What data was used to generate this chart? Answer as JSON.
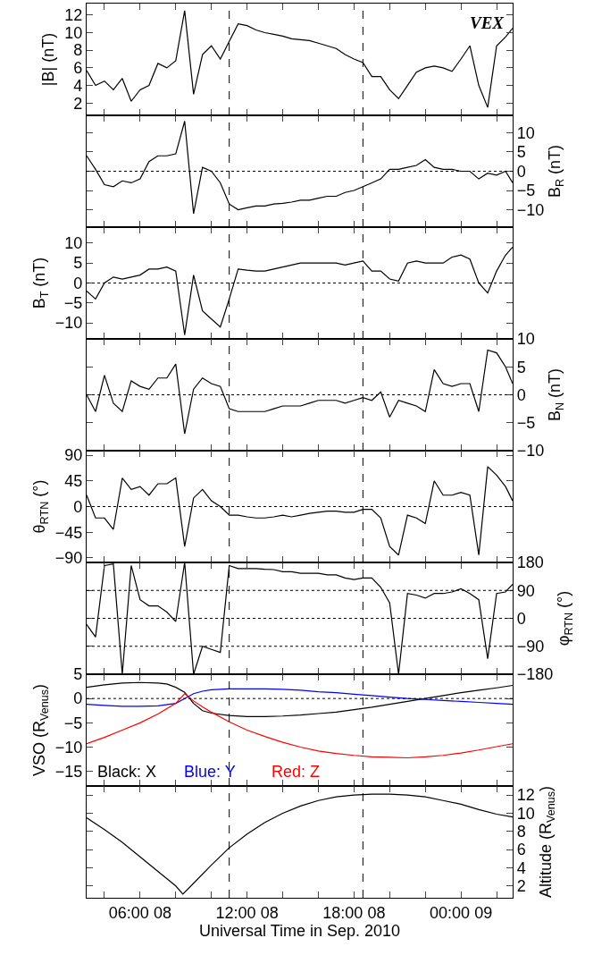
{
  "chart_data": [
    {
      "type": "line",
      "ylabel": "|B| (nT)",
      "annotations": [
        "VEX"
      ],
      "tick_labels": "y",
      "xlim": [
        "2010-09-08T03:00",
        "2010-09-09T02:54"
      ],
      "xticks": [
        {
          "value": "2010-09-08T04:00",
          "label": null
        },
        {
          "value": "2010-09-08T06:00",
          "label": null
        },
        {
          "value": "2010-09-08T08:00",
          "label": null
        },
        {
          "value": "2010-09-08T10:00",
          "label": null
        },
        {
          "value": "2010-09-08T12:00",
          "label": null
        },
        {
          "value": "2010-09-08T14:00",
          "label": null
        },
        {
          "value": "2010-09-08T16:00",
          "label": null
        },
        {
          "value": "2010-09-08T18:00",
          "label": null
        },
        {
          "value": "2010-09-08T20:00",
          "label": null
        },
        {
          "value": "2010-09-08T22:00",
          "label": null
        },
        {
          "value": "2010-09-09T00:00",
          "label": null
        },
        {
          "value": "2010-09-09T02:00",
          "label": null
        }
      ],
      "ylim": [
        0.6,
        13.3
      ],
      "yticks": [
        2,
        4,
        6,
        8,
        10,
        12
      ],
      "ref_lines": [
        {
          "axis": "x",
          "value": "2010-09-08T11:00",
          "line_style": "dashed"
        },
        {
          "axis": "x",
          "value": "2010-09-08T18:30",
          "line_style": "dashed"
        }
      ],
      "x": [
        "2010-09-08T03:00",
        "2010-09-08T03:30",
        "2010-09-08T04:00",
        "2010-09-08T04:30",
        "2010-09-08T05:00",
        "2010-09-08T05:30",
        "2010-09-08T06:00",
        "2010-09-08T06:30",
        "2010-09-08T07:00",
        "2010-09-08T07:30",
        "2010-09-08T08:00",
        "2010-09-08T08:30",
        "2010-09-08T09:00",
        "2010-09-08T09:30",
        "2010-09-08T10:00",
        "2010-09-08T10:30",
        "2010-09-08T11:00",
        "2010-09-08T11:30",
        "2010-09-08T12:00",
        "2010-09-08T12:30",
        "2010-09-08T13:00",
        "2010-09-08T13:30",
        "2010-09-08T14:00",
        "2010-09-08T14:30",
        "2010-09-08T15:00",
        "2010-09-08T15:30",
        "2010-09-08T16:00",
        "2010-09-08T16:30",
        "2010-09-08T17:00",
        "2010-09-08T17:30",
        "2010-09-08T18:00",
        "2010-09-08T18:30",
        "2010-09-08T19:00",
        "2010-09-08T19:30",
        "2010-09-08T20:00",
        "2010-09-08T20:30",
        "2010-09-08T21:00",
        "2010-09-08T21:30",
        "2010-09-08T22:00",
        "2010-09-08T22:30",
        "2010-09-08T23:00",
        "2010-09-08T23:30",
        "2010-09-09T00:00",
        "2010-09-09T00:30",
        "2010-09-09T01:00",
        "2010-09-09T01:30",
        "2010-09-09T02:00",
        "2010-09-09T02:30",
        "2010-09-09T02:54"
      ],
      "series": [
        {
          "color": "#000000",
          "values": [
            5.7,
            4.0,
            4.5,
            3.5,
            4.8,
            2.2,
            3.5,
            4.0,
            6.5,
            6.0,
            6.8,
            12.5,
            3.0,
            7.5,
            8.5,
            7.0,
            9.0,
            11.0,
            10.8,
            10.3,
            10.0,
            9.8,
            9.6,
            9.3,
            9.2,
            9.1,
            8.8,
            8.5,
            8.2,
            7.5,
            7.0,
            6.6,
            5.0,
            5.0,
            3.5,
            2.5,
            4.0,
            5.5,
            6.0,
            6.2,
            6.0,
            5.6,
            7.0,
            8.5,
            4.0,
            1.5,
            8.5,
            9.5,
            10.5
          ]
        }
      ]
    },
    {
      "type": "line",
      "ylabel": "B$_{R}$ (nT)",
      "tick_labels": "y",
      "xlim": [
        "2010-09-08T03:00",
        "2010-09-09T02:54"
      ],
      "xticks": [
        {
          "value": "2010-09-08T04:00",
          "label": null
        },
        {
          "value": "2010-09-08T06:00",
          "label": null
        },
        {
          "value": "2010-09-08T08:00",
          "label": null
        },
        {
          "value": "2010-09-08T10:00",
          "label": null
        },
        {
          "value": "2010-09-08T12:00",
          "label": null
        },
        {
          "value": "2010-09-08T14:00",
          "label": null
        },
        {
          "value": "2010-09-08T16:00",
          "label": null
        },
        {
          "value": "2010-09-08T18:00",
          "label": null
        },
        {
          "value": "2010-09-08T20:00",
          "label": null
        },
        {
          "value": "2010-09-08T22:00",
          "label": null
        },
        {
          "value": "2010-09-09T00:00",
          "label": null
        },
        {
          "value": "2010-09-09T02:00",
          "label": null
        }
      ],
      "ylim": [
        -14.5,
        14.5
      ],
      "yticks": [
        -10,
        -5,
        0,
        5,
        10
      ],
      "ref_lines": [
        {
          "axis": "x",
          "value": "2010-09-08T11:00",
          "line_style": "dashed"
        },
        {
          "axis": "x",
          "value": "2010-09-08T18:30",
          "line_style": "dashed"
        },
        {
          "axis": "y",
          "value": 0,
          "line_style": "dotted"
        }
      ],
      "x": [
        "2010-09-08T03:00",
        "2010-09-08T03:30",
        "2010-09-08T04:00",
        "2010-09-08T04:30",
        "2010-09-08T05:00",
        "2010-09-08T05:30",
        "2010-09-08T06:00",
        "2010-09-08T06:30",
        "2010-09-08T07:00",
        "2010-09-08T07:30",
        "2010-09-08T08:00",
        "2010-09-08T08:30",
        "2010-09-08T09:00",
        "2010-09-08T09:30",
        "2010-09-08T10:00",
        "2010-09-08T10:30",
        "2010-09-08T11:00",
        "2010-09-08T11:30",
        "2010-09-08T12:00",
        "2010-09-08T12:30",
        "2010-09-08T13:00",
        "2010-09-08T13:30",
        "2010-09-08T14:00",
        "2010-09-08T14:30",
        "2010-09-08T15:00",
        "2010-09-08T15:30",
        "2010-09-08T16:00",
        "2010-09-08T16:30",
        "2010-09-08T17:00",
        "2010-09-08T17:30",
        "2010-09-08T18:00",
        "2010-09-08T18:30",
        "2010-09-08T19:00",
        "2010-09-08T19:30",
        "2010-09-08T20:00",
        "2010-09-08T20:30",
        "2010-09-08T21:00",
        "2010-09-08T21:30",
        "2010-09-08T22:00",
        "2010-09-08T22:30",
        "2010-09-08T23:00",
        "2010-09-08T23:30",
        "2010-09-09T00:00",
        "2010-09-09T00:30",
        "2010-09-09T01:00",
        "2010-09-09T01:30",
        "2010-09-09T02:00",
        "2010-09-09T02:30",
        "2010-09-09T02:54"
      ],
      "series": [
        {
          "color": "#000000",
          "values": [
            4.0,
            0.5,
            -3.5,
            -4.0,
            -2.5,
            -3.0,
            -2.0,
            2.5,
            4.0,
            4.0,
            4.5,
            13,
            -11,
            1.0,
            0,
            -3,
            -8.5,
            -10,
            -9.5,
            -9,
            -9,
            -8.5,
            -8.3,
            -8,
            -7.5,
            -7.5,
            -7,
            -6.5,
            -6.5,
            -5.5,
            -5,
            -4,
            -3,
            -2,
            0.5,
            0.5,
            1,
            1.5,
            3.0,
            1,
            0.5,
            0.5,
            0,
            0,
            -2,
            -0.5,
            -1,
            0,
            -3
          ]
        }
      ]
    },
    {
      "type": "line",
      "ylabel": "B$_{T}$ (nT)",
      "tick_labels": "y",
      "xlim": [
        "2010-09-08T03:00",
        "2010-09-09T02:54"
      ],
      "xticks": [
        {
          "value": "2010-09-08T04:00",
          "label": null
        },
        {
          "value": "2010-09-08T06:00",
          "label": null
        },
        {
          "value": "2010-09-08T08:00",
          "label": null
        },
        {
          "value": "2010-09-08T10:00",
          "label": null
        },
        {
          "value": "2010-09-08T12:00",
          "label": null
        },
        {
          "value": "2010-09-08T14:00",
          "label": null
        },
        {
          "value": "2010-09-08T16:00",
          "label": null
        },
        {
          "value": "2010-09-08T18:00",
          "label": null
        },
        {
          "value": "2010-09-08T20:00",
          "label": null
        },
        {
          "value": "2010-09-08T22:00",
          "label": null
        },
        {
          "value": "2010-09-09T00:00",
          "label": null
        },
        {
          "value": "2010-09-09T02:00",
          "label": null
        }
      ],
      "ylim": [
        -14,
        14
      ],
      "yticks": [
        -10,
        -5,
        0,
        5,
        10
      ],
      "ref_lines": [
        {
          "axis": "x",
          "value": "2010-09-08T11:00",
          "line_style": "dashed"
        },
        {
          "axis": "x",
          "value": "2010-09-08T18:30",
          "line_style": "dashed"
        },
        {
          "axis": "y",
          "value": 0,
          "line_style": "dotted"
        }
      ],
      "x": [
        "2010-09-08T03:00",
        "2010-09-08T03:30",
        "2010-09-08T04:00",
        "2010-09-08T04:30",
        "2010-09-08T05:00",
        "2010-09-08T05:30",
        "2010-09-08T06:00",
        "2010-09-08T06:30",
        "2010-09-08T07:00",
        "2010-09-08T07:30",
        "2010-09-08T08:00",
        "2010-09-08T08:30",
        "2010-09-08T09:00",
        "2010-09-08T09:30",
        "2010-09-08T10:00",
        "2010-09-08T10:30",
        "2010-09-08T11:00",
        "2010-09-08T11:30",
        "2010-09-08T12:00",
        "2010-09-08T12:30",
        "2010-09-08T13:00",
        "2010-09-08T13:30",
        "2010-09-08T14:00",
        "2010-09-08T14:30",
        "2010-09-08T15:00",
        "2010-09-08T15:30",
        "2010-09-08T16:00",
        "2010-09-08T16:30",
        "2010-09-08T17:00",
        "2010-09-08T17:30",
        "2010-09-08T18:00",
        "2010-09-08T18:30",
        "2010-09-08T19:00",
        "2010-09-08T19:30",
        "2010-09-08T20:00",
        "2010-09-08T20:30",
        "2010-09-08T21:00",
        "2010-09-08T21:30",
        "2010-09-08T22:00",
        "2010-09-08T22:30",
        "2010-09-08T23:00",
        "2010-09-08T23:30",
        "2010-09-09T00:00",
        "2010-09-09T00:30",
        "2010-09-09T01:00",
        "2010-09-09T01:30",
        "2010-09-09T02:00",
        "2010-09-09T02:30",
        "2010-09-09T02:54"
      ],
      "series": [
        {
          "color": "#000000",
          "values": [
            -2,
            -4,
            0,
            1.5,
            1,
            1.5,
            2,
            3.5,
            3.5,
            4,
            3,
            -13,
            2,
            -7,
            -9,
            -11,
            -4,
            3.5,
            3.2,
            3,
            3,
            3.5,
            4,
            4.5,
            5,
            5,
            5,
            5,
            5,
            4.5,
            5,
            5.5,
            3,
            3,
            1,
            0.5,
            5,
            5.5,
            5,
            5,
            5,
            6.5,
            7,
            6,
            0,
            -2.5,
            3,
            7,
            9
          ]
        }
      ]
    },
    {
      "type": "line",
      "ylabel": "B$_{N}$ (nT)",
      "tick_labels": "y",
      "xlim": [
        "2010-09-08T03:00",
        "2010-09-09T02:54"
      ],
      "xticks": [
        {
          "value": "2010-09-08T04:00",
          "label": null
        },
        {
          "value": "2010-09-08T06:00",
          "label": null
        },
        {
          "value": "2010-09-08T08:00",
          "label": null
        },
        {
          "value": "2010-09-08T10:00",
          "label": null
        },
        {
          "value": "2010-09-08T12:00",
          "label": null
        },
        {
          "value": "2010-09-08T14:00",
          "label": null
        },
        {
          "value": "2010-09-08T16:00",
          "label": null
        },
        {
          "value": "2010-09-08T18:00",
          "label": null
        },
        {
          "value": "2010-09-08T20:00",
          "label": null
        },
        {
          "value": "2010-09-08T22:00",
          "label": null
        },
        {
          "value": "2010-09-09T00:00",
          "label": null
        },
        {
          "value": "2010-09-09T02:00",
          "label": null
        }
      ],
      "ylim": [
        -10,
        10
      ],
      "yticks": [
        -10,
        -5,
        0,
        5,
        10
      ],
      "ref_lines": [
        {
          "axis": "x",
          "value": "2010-09-08T11:00",
          "line_style": "dashed"
        },
        {
          "axis": "x",
          "value": "2010-09-08T18:30",
          "line_style": "dashed"
        },
        {
          "axis": "y",
          "value": 0,
          "line_style": "dotted"
        }
      ],
      "x": [
        "2010-09-08T03:00",
        "2010-09-08T03:30",
        "2010-09-08T04:00",
        "2010-09-08T04:30",
        "2010-09-08T05:00",
        "2010-09-08T05:30",
        "2010-09-08T06:00",
        "2010-09-08T06:30",
        "2010-09-08T07:00",
        "2010-09-08T07:30",
        "2010-09-08T08:00",
        "2010-09-08T08:30",
        "2010-09-08T09:00",
        "2010-09-08T09:30",
        "2010-09-08T10:00",
        "2010-09-08T10:30",
        "2010-09-08T11:00",
        "2010-09-08T11:30",
        "2010-09-08T12:00",
        "2010-09-08T12:30",
        "2010-09-08T13:00",
        "2010-09-08T13:30",
        "2010-09-08T14:00",
        "2010-09-08T14:30",
        "2010-09-08T15:00",
        "2010-09-08T15:30",
        "2010-09-08T16:00",
        "2010-09-08T16:30",
        "2010-09-08T17:00",
        "2010-09-08T17:30",
        "2010-09-08T18:00",
        "2010-09-08T18:30",
        "2010-09-08T19:00",
        "2010-09-08T19:30",
        "2010-09-08T20:00",
        "2010-09-08T20:30",
        "2010-09-08T21:00",
        "2010-09-08T21:30",
        "2010-09-08T22:00",
        "2010-09-08T22:30",
        "2010-09-08T23:00",
        "2010-09-08T23:30",
        "2010-09-09T00:00",
        "2010-09-09T00:30",
        "2010-09-09T01:00",
        "2010-09-09T01:30",
        "2010-09-09T02:00",
        "2010-09-09T02:30",
        "2010-09-09T02:54"
      ],
      "series": [
        {
          "color": "#000000",
          "values": [
            0,
            -3,
            3.5,
            -1.5,
            -3,
            2.5,
            1.5,
            1.0,
            3,
            3,
            5.5,
            -7,
            1,
            3,
            2,
            1.5,
            -2.5,
            -3,
            -3,
            -3,
            -3,
            -2.5,
            -2,
            -2,
            -2,
            -1.5,
            -1,
            -1,
            -1,
            -1.5,
            -1,
            -0.5,
            -1,
            0.5,
            -4,
            -1,
            -1.5,
            -2,
            -3,
            4.5,
            2,
            1.5,
            2,
            2,
            -3,
            8,
            7.5,
            5,
            2
          ]
        }
      ]
    },
    {
      "type": "line",
      "ylabel": "θ$_{RTN}$ (°)",
      "tick_labels": "y",
      "xlim": [
        "2010-09-08T03:00",
        "2010-09-09T02:54"
      ],
      "xticks": [
        {
          "value": "2010-09-08T04:00",
          "label": null
        },
        {
          "value": "2010-09-08T06:00",
          "label": null
        },
        {
          "value": "2010-09-08T08:00",
          "label": null
        },
        {
          "value": "2010-09-08T10:00",
          "label": null
        },
        {
          "value": "2010-09-08T12:00",
          "label": null
        },
        {
          "value": "2010-09-08T14:00",
          "label": null
        },
        {
          "value": "2010-09-08T16:00",
          "label": null
        },
        {
          "value": "2010-09-08T18:00",
          "label": null
        },
        {
          "value": "2010-09-08T20:00",
          "label": null
        },
        {
          "value": "2010-09-08T22:00",
          "label": null
        },
        {
          "value": "2010-09-09T00:00",
          "label": null
        },
        {
          "value": "2010-09-09T02:00",
          "label": null
        }
      ],
      "ylim": [
        -98,
        98
      ],
      "yticks": [
        -90,
        -45,
        0,
        45,
        90
      ],
      "ref_lines": [
        {
          "axis": "x",
          "value": "2010-09-08T11:00",
          "line_style": "dashed"
        },
        {
          "axis": "x",
          "value": "2010-09-08T18:30",
          "line_style": "dashed"
        },
        {
          "axis": "y",
          "value": 0,
          "line_style": "dotted"
        }
      ],
      "x": [
        "2010-09-08T03:00",
        "2010-09-08T03:30",
        "2010-09-08T04:00",
        "2010-09-08T04:30",
        "2010-09-08T05:00",
        "2010-09-08T05:30",
        "2010-09-08T06:00",
        "2010-09-08T06:30",
        "2010-09-08T07:00",
        "2010-09-08T07:30",
        "2010-09-08T08:00",
        "2010-09-08T08:30",
        "2010-09-08T09:00",
        "2010-09-08T09:30",
        "2010-09-08T10:00",
        "2010-09-08T10:30",
        "2010-09-08T11:00",
        "2010-09-08T11:30",
        "2010-09-08T12:00",
        "2010-09-08T12:30",
        "2010-09-08T13:00",
        "2010-09-08T13:30",
        "2010-09-08T14:00",
        "2010-09-08T14:30",
        "2010-09-08T15:00",
        "2010-09-08T15:30",
        "2010-09-08T16:00",
        "2010-09-08T16:30",
        "2010-09-08T17:00",
        "2010-09-08T17:30",
        "2010-09-08T18:00",
        "2010-09-08T18:30",
        "2010-09-08T19:00",
        "2010-09-08T19:30",
        "2010-09-08T20:00",
        "2010-09-08T20:30",
        "2010-09-08T21:00",
        "2010-09-08T21:30",
        "2010-09-08T22:00",
        "2010-09-08T22:30",
        "2010-09-08T23:00",
        "2010-09-08T23:30",
        "2010-09-09T00:00",
        "2010-09-09T00:30",
        "2010-09-09T01:00",
        "2010-09-09T01:30",
        "2010-09-09T02:00",
        "2010-09-09T02:30",
        "2010-09-09T02:54"
      ],
      "series": [
        {
          "color": "#000000",
          "values": [
            20,
            -20,
            -20,
            -40,
            50,
            30,
            35,
            20,
            40,
            40,
            50,
            -70,
            15,
            30,
            10,
            0,
            -15,
            -15,
            -18,
            -20,
            -20,
            -18,
            -15,
            -18,
            -15,
            -12,
            -10,
            -8,
            -8,
            -10,
            -10,
            -5,
            -5,
            -20,
            -70,
            -85,
            -15,
            -20,
            -30,
            45,
            20,
            20,
            25,
            20,
            -85,
            70,
            55,
            35,
            10
          ]
        }
      ]
    },
    {
      "type": "line",
      "ylabel": "φ$_{RTN}$ (°)",
      "tick_labels": "y",
      "xlim": [
        "2010-09-08T03:00",
        "2010-09-09T02:54"
      ],
      "xticks": [
        {
          "value": "2010-09-08T04:00",
          "label": null
        },
        {
          "value": "2010-09-08T06:00",
          "label": null
        },
        {
          "value": "2010-09-08T08:00",
          "label": null
        },
        {
          "value": "2010-09-08T10:00",
          "label": null
        },
        {
          "value": "2010-09-08T12:00",
          "label": null
        },
        {
          "value": "2010-09-08T14:00",
          "label": null
        },
        {
          "value": "2010-09-08T16:00",
          "label": null
        },
        {
          "value": "2010-09-08T18:00",
          "label": null
        },
        {
          "value": "2010-09-08T20:00",
          "label": null
        },
        {
          "value": "2010-09-08T22:00",
          "label": null
        },
        {
          "value": "2010-09-09T00:00",
          "label": null
        },
        {
          "value": "2010-09-09T02:00",
          "label": null
        }
      ],
      "ylim": [
        -180,
        180
      ],
      "yticks": [
        -180,
        -90,
        0,
        90,
        180
      ],
      "ref_lines": [
        {
          "axis": "x",
          "value": "2010-09-08T11:00",
          "line_style": "dashed"
        },
        {
          "axis": "x",
          "value": "2010-09-08T18:30",
          "line_style": "dashed"
        },
        {
          "axis": "y",
          "value": 90,
          "line_style": "dotted"
        },
        {
          "axis": "y",
          "value": 0,
          "line_style": "dotted"
        },
        {
          "axis": "y",
          "value": -90,
          "line_style": "dotted"
        }
      ],
      "x": [
        "2010-09-08T03:00",
        "2010-09-08T03:30",
        "2010-09-08T04:00",
        "2010-09-08T04:30",
        "2010-09-08T05:00",
        "2010-09-08T05:30",
        "2010-09-08T06:00",
        "2010-09-08T06:30",
        "2010-09-08T07:00",
        "2010-09-08T07:30",
        "2010-09-08T08:00",
        "2010-09-08T08:30",
        "2010-09-08T09:00",
        "2010-09-08T09:30",
        "2010-09-08T10:00",
        "2010-09-08T10:30",
        "2010-09-08T11:00",
        "2010-09-08T11:30",
        "2010-09-08T12:00",
        "2010-09-08T12:30",
        "2010-09-08T13:00",
        "2010-09-08T13:30",
        "2010-09-08T14:00",
        "2010-09-08T14:30",
        "2010-09-08T15:00",
        "2010-09-08T15:30",
        "2010-09-08T16:00",
        "2010-09-08T16:30",
        "2010-09-08T17:00",
        "2010-09-08T17:30",
        "2010-09-08T18:00",
        "2010-09-08T18:30",
        "2010-09-08T19:00",
        "2010-09-08T19:30",
        "2010-09-08T20:00",
        "2010-09-08T20:30",
        "2010-09-08T21:00",
        "2010-09-08T21:30",
        "2010-09-08T22:00",
        "2010-09-08T22:30",
        "2010-09-08T23:00",
        "2010-09-08T23:30",
        "2010-09-09T00:00",
        "2010-09-09T00:30",
        "2010-09-09T01:00",
        "2010-09-09T01:30",
        "2010-09-09T02:00",
        "2010-09-09T02:30",
        "2010-09-09T02:54"
      ],
      "series": [
        {
          "color": "#000000",
          "values": [
            -20,
            -60,
            170,
            175,
            -180,
            170,
            60,
            40,
            40,
            20,
            -10,
            180,
            -180,
            -90,
            -100,
            -110,
            170,
            160,
            160,
            160,
            158,
            157,
            150,
            150,
            145,
            145,
            145,
            140,
            140,
            130,
            125,
            130,
            130,
            100,
            50,
            -180,
            80,
            75,
            65,
            80,
            80,
            85,
            95,
            80,
            60,
            -130,
            80,
            85,
            110
          ]
        }
      ]
    },
    {
      "type": "line",
      "ylabel": "VSO (R$_{Venus}$)",
      "tick_labels": "y",
      "xlim": [
        "2010-09-08T03:00",
        "2010-09-09T02:54"
      ],
      "xticks": [
        {
          "value": "2010-09-08T04:00",
          "label": null
        },
        {
          "value": "2010-09-08T06:00",
          "label": null
        },
        {
          "value": "2010-09-08T08:00",
          "label": null
        },
        {
          "value": "2010-09-08T10:00",
          "label": null
        },
        {
          "value": "2010-09-08T12:00",
          "label": null
        },
        {
          "value": "2010-09-08T14:00",
          "label": null
        },
        {
          "value": "2010-09-08T16:00",
          "label": null
        },
        {
          "value": "2010-09-08T18:00",
          "label": null
        },
        {
          "value": "2010-09-08T20:00",
          "label": null
        },
        {
          "value": "2010-09-08T22:00",
          "label": null
        },
        {
          "value": "2010-09-09T00:00",
          "label": null
        },
        {
          "value": "2010-09-09T02:00",
          "label": null
        }
      ],
      "ylim": [
        -18,
        5
      ],
      "yticks": [
        -15,
        -10,
        -5,
        0,
        5
      ],
      "ref_lines": [
        {
          "axis": "x",
          "value": "2010-09-08T11:00",
          "line_style": "dashed"
        },
        {
          "axis": "x",
          "value": "2010-09-08T18:30",
          "line_style": "dashed"
        },
        {
          "axis": "y",
          "value": 0,
          "line_style": "dotted"
        }
      ],
      "series": [
        {
          "name": "Black: X",
          "color": "#000000",
          "x": [
            "2010-09-08T03:00",
            "2010-09-08T04:00",
            "2010-09-08T05:00",
            "2010-09-08T06:00",
            "2010-09-08T07:00",
            "2010-09-08T07:30",
            "2010-09-08T08:00",
            "2010-09-08T08:30",
            "2010-09-08T09:00",
            "2010-09-08T09:30",
            "2010-09-08T10:00",
            "2010-09-08T11:00",
            "2010-09-08T12:00",
            "2010-09-08T13:00",
            "2010-09-08T14:00",
            "2010-09-08T15:00",
            "2010-09-08T16:00",
            "2010-09-08T17:00",
            "2010-09-08T18:00",
            "2010-09-08T19:00",
            "2010-09-08T20:00",
            "2010-09-08T21:00",
            "2010-09-08T22:00",
            "2010-09-08T23:00",
            "2010-09-09T00:00",
            "2010-09-09T01:00",
            "2010-09-09T02:00",
            "2010-09-09T02:54"
          ],
          "values": [
            2.3,
            2.8,
            3.2,
            3.3,
            3.2,
            3,
            2.3,
            1.3,
            -1,
            -2.5,
            -3,
            -3.5,
            -3.7,
            -3.7,
            -3.6,
            -3.4,
            -3.1,
            -2.8,
            -2.3,
            -1.8,
            -1.2,
            -0.6,
            0,
            0.6,
            1.2,
            1.7,
            2.2,
            2.7
          ]
        },
        {
          "name": "Blue: Y",
          "color": "#0000ff",
          "x": [
            "2010-09-08T03:00",
            "2010-09-08T04:00",
            "2010-09-08T05:00",
            "2010-09-08T06:00",
            "2010-09-08T07:00",
            "2010-09-08T08:00",
            "2010-09-08T08:30",
            "2010-09-08T09:00",
            "2010-09-08T09:30",
            "2010-09-08T10:00",
            "2010-09-08T11:00",
            "2010-09-08T12:00",
            "2010-09-08T13:00",
            "2010-09-08T14:00",
            "2010-09-08T15:00",
            "2010-09-08T16:00",
            "2010-09-08T17:00",
            "2010-09-08T18:00",
            "2010-09-08T19:00",
            "2010-09-08T20:00",
            "2010-09-08T21:00",
            "2010-09-08T22:00",
            "2010-09-08T23:00",
            "2010-09-09T00:00",
            "2010-09-09T01:00",
            "2010-09-09T02:00",
            "2010-09-09T02:54"
          ],
          "values": [
            -1.2,
            -1.4,
            -1.6,
            -1.6,
            -1.5,
            -1,
            0,
            1,
            1.5,
            1.8,
            2,
            2,
            2,
            1.9,
            1.7,
            1.4,
            1.2,
            0.9,
            0.6,
            0.3,
            0,
            -0.2,
            -0.4,
            -0.6,
            -0.8,
            -1.0,
            -1.2
          ]
        },
        {
          "name": "Red: Z",
          "color": "#ff0000",
          "x": [
            "2010-09-08T03:00",
            "2010-09-08T04:00",
            "2010-09-08T05:00",
            "2010-09-08T06:00",
            "2010-09-08T07:00",
            "2010-09-08T08:00",
            "2010-09-08T08:30",
            "2010-09-08T09:00",
            "2010-09-08T09:30",
            "2010-09-08T10:00",
            "2010-09-08T11:00",
            "2010-09-08T12:00",
            "2010-09-08T13:00",
            "2010-09-08T14:00",
            "2010-09-08T15:00",
            "2010-09-08T16:00",
            "2010-09-08T17:00",
            "2010-09-08T18:00",
            "2010-09-08T19:00",
            "2010-09-08T20:00",
            "2010-09-08T21:00",
            "2010-09-08T22:00",
            "2010-09-08T23:00",
            "2010-09-09T00:00",
            "2010-09-09T01:00",
            "2010-09-09T02:00",
            "2010-09-09T02:54"
          ],
          "values": [
            -9.3,
            -8,
            -6.5,
            -5,
            -3.2,
            -1,
            1.0,
            -0.5,
            -1.7,
            -2.8,
            -4.8,
            -6.5,
            -7.8,
            -9,
            -10,
            -10.8,
            -11.3,
            -11.7,
            -12,
            -12.1,
            -12.2,
            -12,
            -11.7,
            -11.2,
            -10.6,
            -9.9,
            -9.3
          ]
        }
      ]
    },
    {
      "type": "line",
      "ylabel": "Altitude (R$_{Venus}$)",
      "xlabel": "Universal Time in Sep. 2010",
      "xlim": [
        "2010-09-08T03:00",
        "2010-09-09T02:54"
      ],
      "xticks": [
        {
          "value": "2010-09-08T04:00",
          "label": null
        },
        {
          "value": "2010-09-08T06:00",
          "label": "06:00 08"
        },
        {
          "value": "2010-09-08T08:00",
          "label": null
        },
        {
          "value": "2010-09-08T10:00",
          "label": null
        },
        {
          "value": "2010-09-08T12:00",
          "label": "12:00 08"
        },
        {
          "value": "2010-09-08T14:00",
          "label": null
        },
        {
          "value": "2010-09-08T16:00",
          "label": null
        },
        {
          "value": "2010-09-08T18:00",
          "label": "18:00 08"
        },
        {
          "value": "2010-09-08T20:00",
          "label": null
        },
        {
          "value": "2010-09-08T22:00",
          "label": null
        },
        {
          "value": "2010-09-09T00:00",
          "label": "00:00 09"
        },
        {
          "value": "2010-09-09T02:00",
          "label": null
        }
      ],
      "ylim": [
        0.7,
        13
      ],
      "yticks": [
        2,
        4,
        6,
        8,
        10,
        12
      ],
      "ref_lines": [
        {
          "axis": "x",
          "value": "2010-09-08T11:00",
          "line_style": "dashed"
        },
        {
          "axis": "x",
          "value": "2010-09-08T18:30",
          "line_style": "dashed"
        }
      ],
      "x": [
        "2010-09-08T03:00",
        "2010-09-08T04:00",
        "2010-09-08T05:00",
        "2010-09-08T06:00",
        "2010-09-08T07:00",
        "2010-09-08T08:00",
        "2010-09-08T08:24",
        "2010-09-08T09:00",
        "2010-09-08T10:00",
        "2010-09-08T11:00",
        "2010-09-08T12:00",
        "2010-09-08T13:00",
        "2010-09-08T14:00",
        "2010-09-08T15:00",
        "2010-09-08T16:00",
        "2010-09-08T17:00",
        "2010-09-08T18:00",
        "2010-09-08T19:00",
        "2010-09-08T20:00",
        "2010-09-08T21:00",
        "2010-09-08T22:00",
        "2010-09-08T23:00",
        "2010-09-09T00:00",
        "2010-09-09T01:00",
        "2010-09-09T02:00",
        "2010-09-09T02:54"
      ],
      "series": [
        {
          "color": "#000000",
          "values": [
            9.5,
            8.2,
            6.8,
            5.2,
            3.6,
            2.0,
            1.1,
            2.3,
            4.3,
            6.2,
            7.7,
            9,
            10,
            10.8,
            11.4,
            11.8,
            12.0,
            12.1,
            12.1,
            12.0,
            11.8,
            11.4,
            11,
            10.4,
            9.9,
            9.6
          ]
        }
      ]
    }
  ]
}
